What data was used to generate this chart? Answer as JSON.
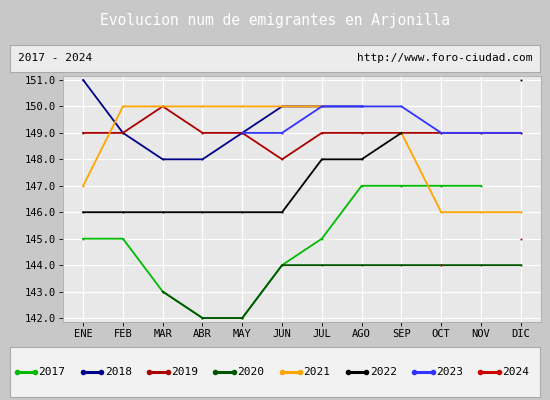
{
  "title": "Evolucion num de emigrantes en Arjonilla",
  "subtitle_left": "2017 - 2024",
  "subtitle_right": "http://www.foro-ciudad.com",
  "months": [
    "ENE",
    "FEB",
    "MAR",
    "ABR",
    "MAY",
    "JUN",
    "JUL",
    "AGO",
    "SEP",
    "OCT",
    "NOV",
    "DIC"
  ],
  "series": {
    "2017": {
      "color": "#00bb00",
      "values": [
        145,
        145,
        143,
        142,
        142,
        144,
        145,
        147,
        147,
        147,
        147,
        null
      ]
    },
    "2018": {
      "color": "#00008b",
      "values": [
        151,
        149,
        148,
        148,
        149,
        150,
        150,
        150,
        null,
        null,
        null,
        null
      ]
    },
    "2019": {
      "color": "#aa0000",
      "values": [
        149,
        149,
        150,
        149,
        149,
        148,
        149,
        149,
        149,
        149,
        149,
        149
      ]
    },
    "2020": {
      "color": "#005500",
      "values": [
        null,
        null,
        143,
        142,
        142,
        144,
        144,
        144,
        144,
        144,
        144,
        144
      ]
    },
    "2021": {
      "color": "#ffa500",
      "values": [
        147,
        150,
        150,
        150,
        150,
        150,
        150,
        null,
        149,
        146,
        146,
        146
      ]
    },
    "2022": {
      "color": "#000000",
      "values": [
        146,
        146,
        146,
        146,
        146,
        146,
        148,
        148,
        149,
        null,
        null,
        151
      ]
    },
    "2023": {
      "color": "#3333ff",
      "values": [
        null,
        null,
        null,
        null,
        149,
        149,
        150,
        150,
        150,
        149,
        149,
        149
      ]
    },
    "2024": {
      "color": "#cc0000",
      "values": [
        null,
        null,
        null,
        null,
        null,
        null,
        null,
        null,
        null,
        144,
        null,
        145
      ]
    }
  },
  "ylim": [
    142.0,
    151.0
  ],
  "yticks": [
    142.0,
    143.0,
    144.0,
    145.0,
    146.0,
    147.0,
    148.0,
    149.0,
    150.0,
    151.0
  ],
  "title_bg": "#4a7fc1",
  "title_color": "#ffffff",
  "plot_bg": "#e8e8e8",
  "grid_color": "#ffffff",
  "outer_bg": "#c8c8c8"
}
